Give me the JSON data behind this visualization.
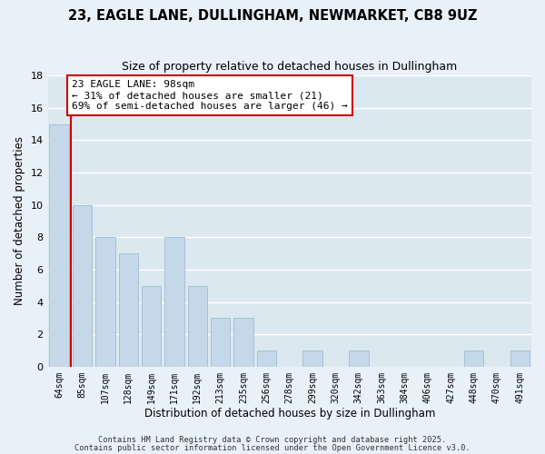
{
  "title": "23, EAGLE LANE, DULLINGHAM, NEWMARKET, CB8 9UZ",
  "subtitle": "Size of property relative to detached houses in Dullingham",
  "xlabel": "Distribution of detached houses by size in Dullingham",
  "ylabel": "Number of detached properties",
  "bar_color": "#c5d8ea",
  "bar_edge_color": "#a0bcd4",
  "plot_bg_color": "#dce8f0",
  "fig_bg_color": "#e8f0f8",
  "grid_color": "#ffffff",
  "bins": [
    "64sqm",
    "85sqm",
    "107sqm",
    "128sqm",
    "149sqm",
    "171sqm",
    "192sqm",
    "213sqm",
    "235sqm",
    "256sqm",
    "278sqm",
    "299sqm",
    "320sqm",
    "342sqm",
    "363sqm",
    "384sqm",
    "406sqm",
    "427sqm",
    "448sqm",
    "470sqm",
    "491sqm"
  ],
  "counts": [
    15,
    10,
    8,
    7,
    5,
    8,
    5,
    3,
    3,
    1,
    0,
    1,
    0,
    1,
    0,
    0,
    0,
    0,
    1,
    0,
    1
  ],
  "ylim": [
    0,
    18
  ],
  "yticks": [
    0,
    2,
    4,
    6,
    8,
    10,
    12,
    14,
    16,
    18
  ],
  "property_line_color": "#cc0000",
  "annotation_text": "23 EAGLE LANE: 98sqm\n← 31% of detached houses are smaller (21)\n69% of semi-detached houses are larger (46) →",
  "annotation_box_color": "#ffffff",
  "annotation_box_edge_color": "#cc0000",
  "footer_line1": "Contains HM Land Registry data © Crown copyright and database right 2025.",
  "footer_line2": "Contains public sector information licensed under the Open Government Licence v3.0."
}
